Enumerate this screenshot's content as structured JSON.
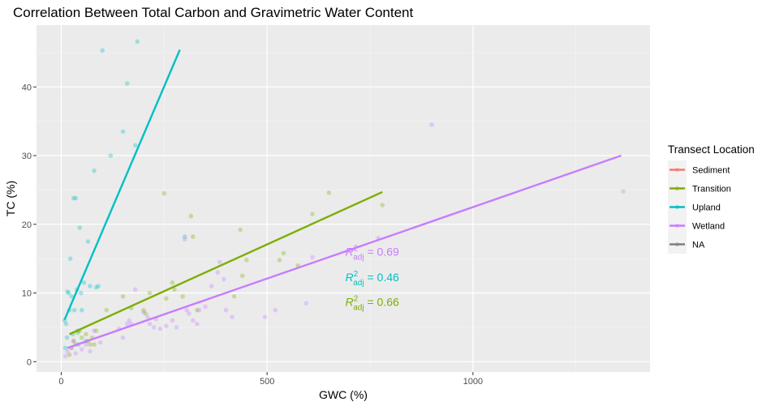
{
  "chart_data": {
    "type": "scatter",
    "title": "Correlation Between Total Carbon and Gravimetric Water Content",
    "xlabel": "GWC (%)",
    "ylabel": "TC (%)",
    "xlim": [
      -60,
      1430
    ],
    "ylim": [
      -1.5,
      49
    ],
    "x_ticks": [
      0,
      500,
      1000
    ],
    "x_tick_labels": [
      "0",
      "500",
      "1000"
    ],
    "y_ticks": [
      0,
      10,
      20,
      30,
      40
    ],
    "y_tick_labels": [
      "0",
      "10",
      "20",
      "30",
      "40"
    ],
    "grid": true,
    "legend": {
      "title": "Transect Location",
      "position": "right",
      "entries": [
        {
          "name": "Sediment",
          "color": "#F8766D"
        },
        {
          "name": "Transition",
          "color": "#7CAE00"
        },
        {
          "name": "Upland",
          "color": "#00BFC4"
        },
        {
          "name": "Wetland",
          "color": "#C77CFF"
        },
        {
          "name": "NA",
          "color": "#7F7F7F"
        }
      ]
    },
    "series": [
      {
        "name": "Transition",
        "color": "#7CAE00",
        "points": [
          [
            20,
            1.0
          ],
          [
            25,
            2.0
          ],
          [
            30,
            3.0
          ],
          [
            35,
            2.5
          ],
          [
            40,
            4.2
          ],
          [
            45,
            4.5
          ],
          [
            50,
            3.5
          ],
          [
            60,
            4.0
          ],
          [
            65,
            3.0
          ],
          [
            70,
            2.5
          ],
          [
            75,
            3.5
          ],
          [
            80,
            2.5
          ],
          [
            85,
            4.5
          ],
          [
            110,
            7.5
          ],
          [
            150,
            9.5
          ],
          [
            170,
            7.8
          ],
          [
            200,
            7.5
          ],
          [
            205,
            7.0
          ],
          [
            215,
            10.0
          ],
          [
            250,
            24.5
          ],
          [
            255,
            9.2
          ],
          [
            270,
            11.5
          ],
          [
            275,
            10.5
          ],
          [
            295,
            9.5
          ],
          [
            315,
            21.2
          ],
          [
            320,
            18.2
          ],
          [
            330,
            7.5
          ],
          [
            420,
            9.5
          ],
          [
            435,
            19.2
          ],
          [
            440,
            12.5
          ],
          [
            450,
            14.8
          ],
          [
            530,
            14.8
          ],
          [
            540,
            15.8
          ],
          [
            575,
            14.0
          ],
          [
            610,
            21.5
          ],
          [
            650,
            24.6
          ],
          [
            780,
            22.8
          ]
        ],
        "fit": [
          [
            20,
            4.0
          ],
          [
            780,
            24.7
          ]
        ],
        "r2_adj": "0.66"
      },
      {
        "name": "Upland",
        "color": "#00BFC4",
        "points": [
          [
            8,
            6.0
          ],
          [
            10,
            2.0
          ],
          [
            12,
            5.5
          ],
          [
            14,
            3.5
          ],
          [
            15,
            10.2
          ],
          [
            18,
            10.0
          ],
          [
            20,
            7.5
          ],
          [
            22,
            15.0
          ],
          [
            25,
            9.5
          ],
          [
            28,
            4.0
          ],
          [
            30,
            23.8
          ],
          [
            32,
            7.5
          ],
          [
            35,
            23.8
          ],
          [
            38,
            10.5
          ],
          [
            40,
            4.5
          ],
          [
            42,
            2.5
          ],
          [
            45,
            19.5
          ],
          [
            48,
            10.0
          ],
          [
            50,
            7.5
          ],
          [
            55,
            11.5
          ],
          [
            60,
            3.0
          ],
          [
            65,
            17.5
          ],
          [
            70,
            11.0
          ],
          [
            80,
            27.8
          ],
          [
            85,
            10.8
          ],
          [
            90,
            11.0
          ],
          [
            100,
            45.3
          ],
          [
            120,
            30.0
          ],
          [
            150,
            33.5
          ],
          [
            160,
            40.5
          ],
          [
            180,
            31.5
          ],
          [
            185,
            46.6
          ],
          [
            300,
            18.2
          ]
        ],
        "fit": [
          [
            8,
            6.1
          ],
          [
            288,
            45.4
          ]
        ],
        "r2_adj": "0.46"
      },
      {
        "name": "Wetland",
        "color": "#C77CFF",
        "points": [
          [
            10,
            0.8
          ],
          [
            15,
            1.5
          ],
          [
            25,
            2.0
          ],
          [
            30,
            3.0
          ],
          [
            35,
            1.2
          ],
          [
            50,
            1.8
          ],
          [
            60,
            2.5
          ],
          [
            70,
            1.5
          ],
          [
            80,
            4.5
          ],
          [
            95,
            2.8
          ],
          [
            140,
            4.8
          ],
          [
            150,
            3.5
          ],
          [
            160,
            5.5
          ],
          [
            165,
            6.0
          ],
          [
            170,
            5.5
          ],
          [
            180,
            10.5
          ],
          [
            200,
            7.2
          ],
          [
            210,
            6.5
          ],
          [
            215,
            5.5
          ],
          [
            225,
            5.0
          ],
          [
            230,
            6.2
          ],
          [
            240,
            4.8
          ],
          [
            255,
            5.2
          ],
          [
            270,
            6.0
          ],
          [
            280,
            5.0
          ],
          [
            300,
            17.8
          ],
          [
            305,
            7.5
          ],
          [
            310,
            7.0
          ],
          [
            320,
            6.0
          ],
          [
            330,
            5.5
          ],
          [
            335,
            7.5
          ],
          [
            350,
            8.0
          ],
          [
            365,
            11.0
          ],
          [
            380,
            13.0
          ],
          [
            385,
            14.5
          ],
          [
            395,
            12.0
          ],
          [
            400,
            7.5
          ],
          [
            415,
            6.5
          ],
          [
            495,
            6.5
          ],
          [
            520,
            7.5
          ],
          [
            595,
            8.5
          ],
          [
            610,
            15.2
          ],
          [
            770,
            18.0
          ],
          [
            900,
            34.5
          ],
          [
            1365,
            24.8
          ]
        ],
        "fit": [
          [
            15,
            2.0
          ],
          [
            1360,
            30.0
          ]
        ],
        "r2_adj": "0.69"
      }
    ],
    "annotations": [
      {
        "label": "R",
        "sup": "2",
        "sub": "adj",
        "text": " = 0.69",
        "x": 690,
        "y": 16.0,
        "color": "#C77CFF"
      },
      {
        "label": "R",
        "sup": "2",
        "sub": "adj",
        "text": " = 0.46",
        "x": 690,
        "y": 12.3,
        "color": "#00BFC4"
      },
      {
        "label": "R",
        "sup": "2",
        "sub": "adj",
        "text": " = 0.66",
        "x": 690,
        "y": 8.7,
        "color": "#7CAE00"
      }
    ]
  }
}
